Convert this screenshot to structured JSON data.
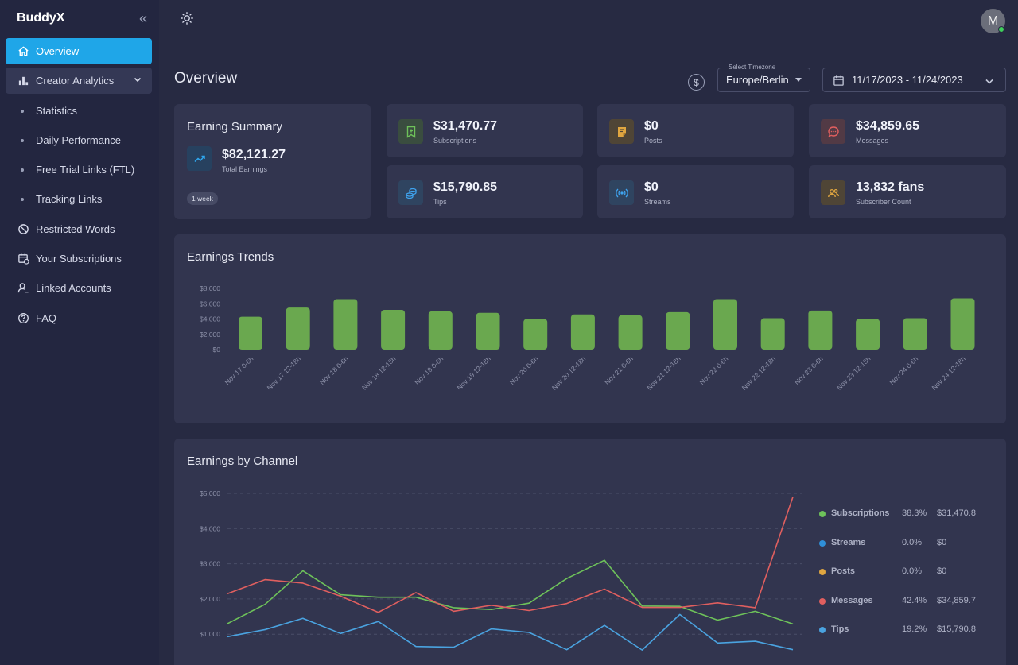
{
  "brand": "BuddyX",
  "nav": {
    "overview": "Overview",
    "creator_analytics": "Creator Analytics",
    "statistics": "Statistics",
    "daily_performance": "Daily Performance",
    "free_trial_links": "Free Trial Links (FTL)",
    "tracking_links": "Tracking Links",
    "restricted_words": "Restricted Words",
    "your_subscriptions": "Your Subscriptions",
    "linked_accounts": "Linked Accounts",
    "faq": "FAQ"
  },
  "header": {
    "avatar_letter": "M",
    "page_title": "Overview",
    "currency_symbol": "$",
    "timezone_label": "Select Timezone",
    "timezone_value": "Europe/Berlin",
    "date_range": "11/17/2023 - 11/24/2023"
  },
  "summary": {
    "title": "Earning Summary",
    "total": "$82,121.27",
    "total_label": "Total Earnings",
    "period": "1 week"
  },
  "stats": {
    "subscriptions": {
      "value": "$31,470.77",
      "label": "Subscriptions"
    },
    "posts": {
      "value": "$0",
      "label": "Posts"
    },
    "messages": {
      "value": "$34,859.65",
      "label": "Messages"
    },
    "tips": {
      "value": "$15,790.85",
      "label": "Tips"
    },
    "streams": {
      "value": "$0",
      "label": "Streams"
    },
    "subscriber_count": {
      "value": "13,832 fans",
      "label": "Subscriber Count"
    }
  },
  "colors": {
    "accent": "#1fa6e8",
    "subscriptions": "#6ec25a",
    "streams": "#2f8fd8",
    "posts": "#e0a640",
    "messages": "#e05f5f",
    "tips": "#4aa3e0"
  },
  "chart_data": [
    {
      "type": "bar",
      "title": "Earnings Trends",
      "categories": [
        "Nov 17 0-6h",
        "Nov 17 12-18h",
        "Nov 18 0-6h",
        "Nov 18 12-18h",
        "Nov 19 0-6h",
        "Nov 19 12-18h",
        "Nov 20 0-6h",
        "Nov 20 12-18h",
        "Nov 21 0-6h",
        "Nov 21 12-18h",
        "Nov 22 0-6h",
        "Nov 22 12-18h",
        "Nov 23 0-6h",
        "Nov 23 12-18h",
        "Nov 24 0-6h",
        "Nov 24 12-18h"
      ],
      "values": [
        4300,
        5500,
        6600,
        5200,
        5000,
        4800,
        4000,
        4600,
        4500,
        4900,
        6600,
        4100,
        5100,
        4000,
        4100,
        6700
      ],
      "yticks": [
        "$8,000",
        "$6,000",
        "$4,000",
        "$2,000",
        "$0"
      ],
      "ylim": [
        0,
        8000
      ],
      "color": "#6aa84f"
    },
    {
      "type": "line",
      "title": "Earnings by Channel",
      "ylim": [
        0,
        5000
      ],
      "yticks": [
        "$5,000",
        "$4,000",
        "$3,000",
        "$2,000",
        "$1,000"
      ],
      "series": [
        {
          "name": "Subscriptions",
          "percent": "38.3%",
          "amount": "$31,470.8",
          "color": "#6ec25a",
          "values": [
            1300,
            1850,
            2800,
            2120,
            2050,
            2050,
            1750,
            1700,
            1880,
            2580,
            3100,
            1800,
            1790,
            1400,
            1650,
            1290
          ]
        },
        {
          "name": "Streams",
          "percent": "0.0%",
          "amount": "$0",
          "color": "#2f8fd8",
          "values": []
        },
        {
          "name": "Posts",
          "percent": "0.0%",
          "amount": "$0",
          "color": "#e0a640",
          "values": []
        },
        {
          "name": "Messages",
          "percent": "42.4%",
          "amount": "$34,859.7",
          "color": "#e05f5f",
          "values": [
            2150,
            2550,
            2450,
            2080,
            1620,
            2180,
            1650,
            1820,
            1670,
            1870,
            2280,
            1760,
            1760,
            1890,
            1750,
            4900
          ]
        },
        {
          "name": "Tips",
          "percent": "19.2%",
          "amount": "$15,790.8",
          "color": "#4aa3e0",
          "values": [
            930,
            1130,
            1450,
            1020,
            1360,
            650,
            630,
            1150,
            1050,
            560,
            1250,
            550,
            1560,
            750,
            800,
            560
          ]
        }
      ]
    }
  ]
}
